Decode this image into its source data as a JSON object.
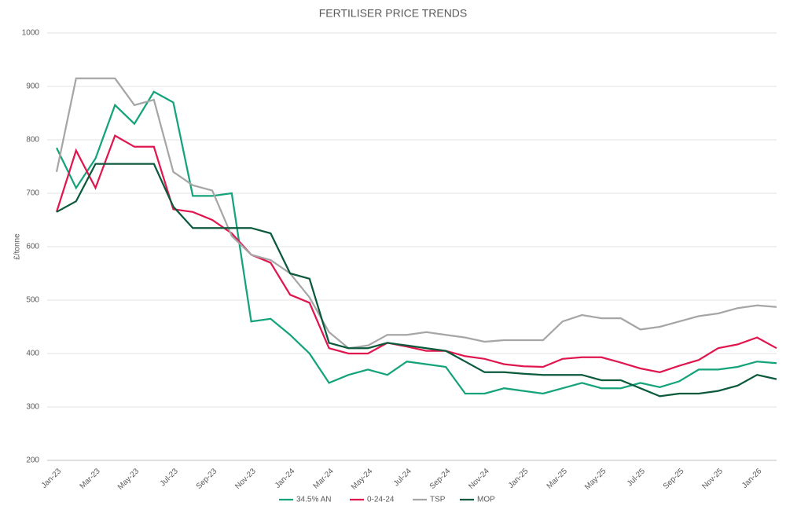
{
  "chart_data": {
    "type": "line",
    "title": "FERTILISER PRICE TRENDS",
    "y_label": "£/tonne",
    "categories": [
      "Jan-23",
      null,
      "Mar-23",
      null,
      "May-23",
      null,
      "Jul-23",
      null,
      "Sep-23",
      null,
      "Nov-23",
      null,
      "Jan-24",
      null,
      "Mar-24",
      null,
      "May-24",
      null,
      "Jul-24",
      null,
      "Sep-24",
      null,
      "Nov-24",
      null,
      "Jan-25",
      null,
      "Mar-25",
      null,
      "May-25",
      null,
      "Jul-25",
      null,
      "Sep-25",
      null,
      "Nov-25",
      null,
      "Jan-26",
      null
    ],
    "series": [
      {
        "name": "34.5% AN",
        "color": "#14a37a",
        "values": [
          785,
          710,
          765,
          865,
          830,
          890,
          870,
          695,
          695,
          700,
          460,
          465,
          435,
          400,
          345,
          360,
          370,
          360,
          385,
          380,
          375,
          325,
          325,
          335,
          330,
          325,
          335,
          345,
          335,
          335,
          345,
          337,
          348,
          370,
          370,
          375,
          385,
          382
        ]
      },
      {
        "name": "0-24-24",
        "color": "#e0174f",
        "values": [
          665,
          780,
          710,
          808,
          787,
          787,
          670,
          665,
          650,
          625,
          585,
          570,
          510,
          495,
          410,
          400,
          400,
          420,
          413,
          405,
          405,
          395,
          390,
          380,
          376,
          375,
          390,
          393,
          393,
          383,
          372,
          365,
          377,
          388,
          410,
          417,
          430,
          410
        ]
      },
      {
        "name": "TSP",
        "color": "#a6a6a6",
        "values": [
          740,
          915,
          915,
          915,
          865,
          875,
          740,
          715,
          705,
          620,
          585,
          575,
          550,
          505,
          440,
          410,
          415,
          435,
          435,
          440,
          435,
          430,
          422,
          425,
          425,
          425,
          460,
          472,
          466,
          466,
          445,
          450,
          460,
          470,
          475,
          485,
          490,
          487
        ]
      },
      {
        "name": "MOP",
        "color": "#0b5a3c",
        "values": [
          665,
          685,
          755,
          755,
          755,
          755,
          675,
          635,
          635,
          635,
          635,
          625,
          550,
          540,
          420,
          410,
          410,
          420,
          415,
          410,
          405,
          385,
          365,
          365,
          362,
          360,
          360,
          360,
          350,
          350,
          335,
          320,
          325,
          325,
          330,
          340,
          360,
          352
        ]
      }
    ],
    "ylim": [
      200,
      1000
    ],
    "yticks": [
      200,
      300,
      400,
      500,
      600,
      700,
      800,
      900,
      1000
    ],
    "grid": true,
    "legend": "bottom"
  }
}
